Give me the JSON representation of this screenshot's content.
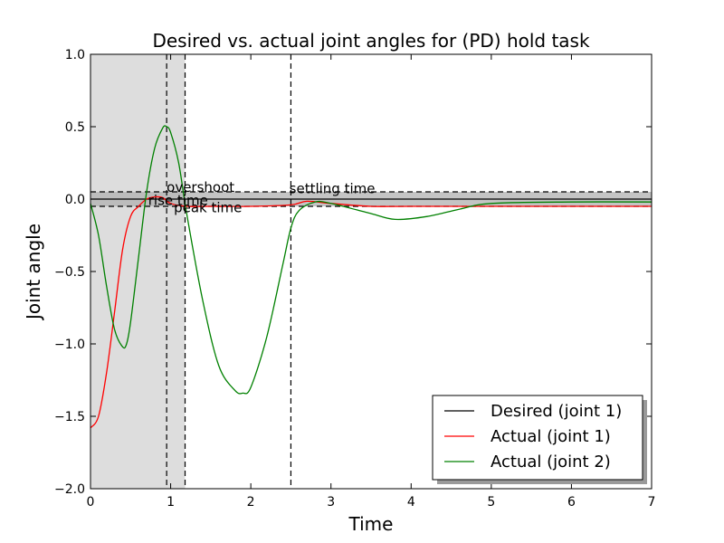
{
  "chart_data": {
    "type": "line",
    "title": "Desired vs. actual joint angles for (PD) hold task",
    "xlabel": "Time",
    "ylabel": "Joint angle",
    "xlim": [
      0,
      7
    ],
    "ylim": [
      -2.0,
      1.0
    ],
    "x_ticks": [
      "0",
      "1",
      "2",
      "3",
      "4",
      "5",
      "6",
      "7"
    ],
    "y_ticks": [
      "1.0",
      "0.5",
      "0.0",
      "−0.5",
      "−1.0",
      "−1.5",
      "−2.0"
    ],
    "y_tick_values": [
      1.0,
      0.5,
      0.0,
      -0.5,
      -1.0,
      -1.5,
      -2.0
    ],
    "grid": false,
    "legend_position": "bottom-right",
    "series": [
      {
        "name": "Desired (joint 1)",
        "color": "#000000",
        "x": [
          0,
          7
        ],
        "y": [
          0,
          0
        ]
      },
      {
        "name": "Actual (joint 1)",
        "color": "#ff0000",
        "x": [
          0,
          0.1,
          0.2,
          0.3,
          0.4,
          0.5,
          0.6,
          0.7,
          0.8,
          0.9,
          1.0,
          1.2,
          1.5,
          2.0,
          2.5,
          2.7,
          3.0,
          3.5,
          4.0,
          5.0,
          6.0,
          7.0
        ],
        "y": [
          -1.58,
          -1.5,
          -1.2,
          -0.78,
          -0.35,
          -0.12,
          -0.05,
          0.0,
          0.015,
          0.01,
          -0.03,
          -0.05,
          -0.05,
          -0.05,
          -0.04,
          -0.015,
          -0.03,
          -0.05,
          -0.05,
          -0.05,
          -0.05,
          -0.05
        ]
      },
      {
        "name": "Actual (joint 2)",
        "color": "#008000",
        "x": [
          0,
          0.1,
          0.2,
          0.3,
          0.4,
          0.45,
          0.5,
          0.6,
          0.7,
          0.8,
          0.9,
          0.95,
          1.0,
          1.1,
          1.2,
          1.4,
          1.6,
          1.8,
          1.9,
          2.0,
          2.2,
          2.4,
          2.5,
          2.6,
          2.8,
          3.0,
          3.5,
          3.8,
          4.2,
          4.6,
          5.0,
          6.0,
          7.0
        ],
        "y": [
          -0.03,
          -0.25,
          -0.6,
          -0.9,
          -1.02,
          -1.0,
          -0.85,
          -0.4,
          0.05,
          0.35,
          0.49,
          0.5,
          0.46,
          0.25,
          -0.1,
          -0.7,
          -1.15,
          -1.32,
          -1.34,
          -1.3,
          -0.95,
          -0.45,
          -0.2,
          -0.08,
          -0.02,
          -0.03,
          -0.1,
          -0.14,
          -0.12,
          -0.07,
          -0.03,
          -0.02,
          -0.02
        ]
      }
    ],
    "shaded_region": {
      "x": [
        0,
        1.18
      ],
      "color": "#dddddd"
    },
    "tolerance_band": {
      "y": [
        -0.05,
        0.05
      ],
      "color": "#b0b0b0"
    },
    "vertical_markers": [
      0.95,
      1.18,
      2.5
    ],
    "annotations": [
      {
        "text": "overshoot",
        "x": 0.95,
        "y": 0.05
      },
      {
        "text": "rise time",
        "x": 0.72,
        "y": -0.04
      },
      {
        "text": "peak time",
        "x": 1.04,
        "y": -0.09
      },
      {
        "text": "settling time",
        "x": 2.48,
        "y": 0.04
      }
    ]
  }
}
